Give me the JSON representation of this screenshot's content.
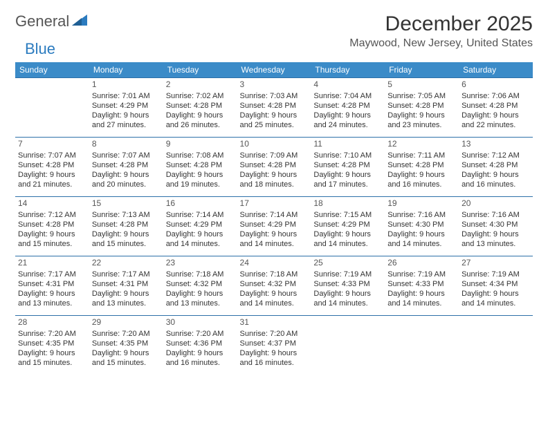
{
  "logo": {
    "text1": "General",
    "text2": "Blue"
  },
  "title": "December 2025",
  "location": "Maywood, New Jersey, United States",
  "dayHeaders": [
    "Sunday",
    "Monday",
    "Tuesday",
    "Wednesday",
    "Thursday",
    "Friday",
    "Saturday"
  ],
  "colors": {
    "headerBg": "#3b8bc8",
    "headerText": "#ffffff",
    "border": "#2b6fa8",
    "bodyText": "#333333"
  },
  "weeks": [
    [
      null,
      {
        "n": "1",
        "sr": "7:01 AM",
        "ss": "4:29 PM",
        "dl": "9 hours and 27 minutes."
      },
      {
        "n": "2",
        "sr": "7:02 AM",
        "ss": "4:28 PM",
        "dl": "9 hours and 26 minutes."
      },
      {
        "n": "3",
        "sr": "7:03 AM",
        "ss": "4:28 PM",
        "dl": "9 hours and 25 minutes."
      },
      {
        "n": "4",
        "sr": "7:04 AM",
        "ss": "4:28 PM",
        "dl": "9 hours and 24 minutes."
      },
      {
        "n": "5",
        "sr": "7:05 AM",
        "ss": "4:28 PM",
        "dl": "9 hours and 23 minutes."
      },
      {
        "n": "6",
        "sr": "7:06 AM",
        "ss": "4:28 PM",
        "dl": "9 hours and 22 minutes."
      }
    ],
    [
      {
        "n": "7",
        "sr": "7:07 AM",
        "ss": "4:28 PM",
        "dl": "9 hours and 21 minutes."
      },
      {
        "n": "8",
        "sr": "7:07 AM",
        "ss": "4:28 PM",
        "dl": "9 hours and 20 minutes."
      },
      {
        "n": "9",
        "sr": "7:08 AM",
        "ss": "4:28 PM",
        "dl": "9 hours and 19 minutes."
      },
      {
        "n": "10",
        "sr": "7:09 AM",
        "ss": "4:28 PM",
        "dl": "9 hours and 18 minutes."
      },
      {
        "n": "11",
        "sr": "7:10 AM",
        "ss": "4:28 PM",
        "dl": "9 hours and 17 minutes."
      },
      {
        "n": "12",
        "sr": "7:11 AM",
        "ss": "4:28 PM",
        "dl": "9 hours and 16 minutes."
      },
      {
        "n": "13",
        "sr": "7:12 AM",
        "ss": "4:28 PM",
        "dl": "9 hours and 16 minutes."
      }
    ],
    [
      {
        "n": "14",
        "sr": "7:12 AM",
        "ss": "4:28 PM",
        "dl": "9 hours and 15 minutes."
      },
      {
        "n": "15",
        "sr": "7:13 AM",
        "ss": "4:28 PM",
        "dl": "9 hours and 15 minutes."
      },
      {
        "n": "16",
        "sr": "7:14 AM",
        "ss": "4:29 PM",
        "dl": "9 hours and 14 minutes."
      },
      {
        "n": "17",
        "sr": "7:14 AM",
        "ss": "4:29 PM",
        "dl": "9 hours and 14 minutes."
      },
      {
        "n": "18",
        "sr": "7:15 AM",
        "ss": "4:29 PM",
        "dl": "9 hours and 14 minutes."
      },
      {
        "n": "19",
        "sr": "7:16 AM",
        "ss": "4:30 PM",
        "dl": "9 hours and 14 minutes."
      },
      {
        "n": "20",
        "sr": "7:16 AM",
        "ss": "4:30 PM",
        "dl": "9 hours and 13 minutes."
      }
    ],
    [
      {
        "n": "21",
        "sr": "7:17 AM",
        "ss": "4:31 PM",
        "dl": "9 hours and 13 minutes."
      },
      {
        "n": "22",
        "sr": "7:17 AM",
        "ss": "4:31 PM",
        "dl": "9 hours and 13 minutes."
      },
      {
        "n": "23",
        "sr": "7:18 AM",
        "ss": "4:32 PM",
        "dl": "9 hours and 13 minutes."
      },
      {
        "n": "24",
        "sr": "7:18 AM",
        "ss": "4:32 PM",
        "dl": "9 hours and 14 minutes."
      },
      {
        "n": "25",
        "sr": "7:19 AM",
        "ss": "4:33 PM",
        "dl": "9 hours and 14 minutes."
      },
      {
        "n": "26",
        "sr": "7:19 AM",
        "ss": "4:33 PM",
        "dl": "9 hours and 14 minutes."
      },
      {
        "n": "27",
        "sr": "7:19 AM",
        "ss": "4:34 PM",
        "dl": "9 hours and 14 minutes."
      }
    ],
    [
      {
        "n": "28",
        "sr": "7:20 AM",
        "ss": "4:35 PM",
        "dl": "9 hours and 15 minutes."
      },
      {
        "n": "29",
        "sr": "7:20 AM",
        "ss": "4:35 PM",
        "dl": "9 hours and 15 minutes."
      },
      {
        "n": "30",
        "sr": "7:20 AM",
        "ss": "4:36 PM",
        "dl": "9 hours and 16 minutes."
      },
      {
        "n": "31",
        "sr": "7:20 AM",
        "ss": "4:37 PM",
        "dl": "9 hours and 16 minutes."
      },
      null,
      null,
      null
    ]
  ],
  "labels": {
    "sunrise": "Sunrise: ",
    "sunset": "Sunset: ",
    "daylight": "Daylight: "
  }
}
